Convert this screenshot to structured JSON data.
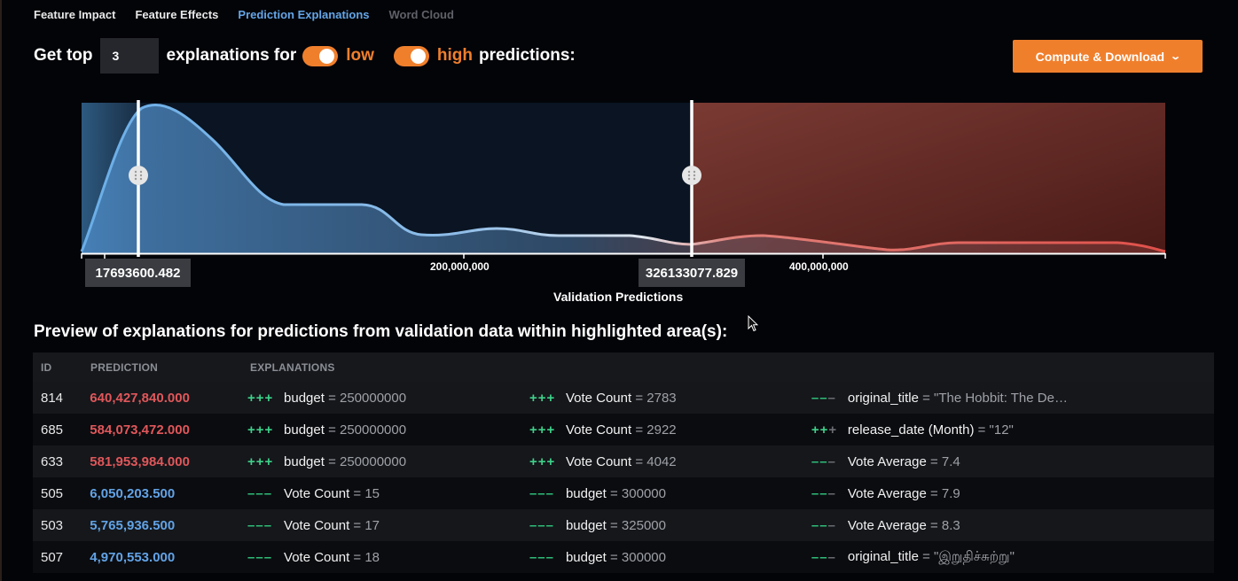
{
  "tabs": [
    {
      "label": "Feature Impact",
      "state": "normal"
    },
    {
      "label": "Feature Effects",
      "state": "normal"
    },
    {
      "label": "Prediction Explanations",
      "state": "active"
    },
    {
      "label": "Word Cloud",
      "state": "disabled"
    }
  ],
  "controls": {
    "get_top_label": "Get top",
    "top_n_value": "3",
    "explanations_for_label": "explanations for",
    "low_label": "low",
    "high_label": "high",
    "predictions_label": "predictions:",
    "low_toggle_on": true,
    "high_toggle_on": true,
    "compute_button_label": "Compute & Download"
  },
  "chart_data": {
    "type": "area",
    "x_axis": {
      "label": "Validation Predictions",
      "ticks": [
        "200,000,000",
        "400,000,000"
      ],
      "range": [
        0,
        600000000
      ]
    },
    "thresholds": {
      "low": 17693600.482,
      "low_label": "17693600.482",
      "high": 326133077.829,
      "high_label": "326133077.829"
    },
    "colors": {
      "low_region": "#3b74a8",
      "high_region": "#a33a32",
      "curve_low": "#6aaee8",
      "curve_high": "#e06860"
    }
  },
  "preview": {
    "title": "Preview of explanations for predictions from validation data within highlighted area(s):",
    "columns": [
      "ID",
      "PREDICTION",
      "EXPLANATIONS"
    ],
    "rows": [
      {
        "id": "814",
        "prediction": "640,427,840.000",
        "tier": "high",
        "explanations": [
          {
            "strength": "+++",
            "sign": "pos",
            "feature": "budget",
            "value": " = 250000000"
          },
          {
            "strength": "+++",
            "sign": "pos",
            "feature": "Vote Count",
            "value": " = 2783"
          },
          {
            "strength": "−−−",
            "sign": "neg2",
            "feature": "original_title",
            "value": " = \"The Hobbit: The De…"
          }
        ]
      },
      {
        "id": "685",
        "prediction": "584,073,472.000",
        "tier": "high",
        "explanations": [
          {
            "strength": "+++",
            "sign": "pos",
            "feature": "budget",
            "value": " = 250000000"
          },
          {
            "strength": "+++",
            "sign": "pos",
            "feature": "Vote Count",
            "value": " = 2922"
          },
          {
            "strength": "++",
            "sign": "pos2",
            "feature": "release_date (Month)",
            "value": " = \"12\""
          }
        ]
      },
      {
        "id": "633",
        "prediction": "581,953,984.000",
        "tier": "high",
        "explanations": [
          {
            "strength": "+++",
            "sign": "pos",
            "feature": "budget",
            "value": " = 250000000"
          },
          {
            "strength": "+++",
            "sign": "pos",
            "feature": "Vote Count",
            "value": " = 4042"
          },
          {
            "strength": "−−−",
            "sign": "neg2",
            "feature": "Vote Average",
            "value": " = 7.4"
          }
        ]
      },
      {
        "id": "505",
        "prediction": "6,050,203.500",
        "tier": "low",
        "explanations": [
          {
            "strength": "−−−",
            "sign": "neg",
            "feature": "Vote Count",
            "value": " = 15"
          },
          {
            "strength": "−−−",
            "sign": "neg",
            "feature": "budget",
            "value": " = 300000"
          },
          {
            "strength": "−−−",
            "sign": "neg2",
            "feature": "Vote Average",
            "value": " = 7.9"
          }
        ]
      },
      {
        "id": "503",
        "prediction": "5,765,936.500",
        "tier": "low",
        "explanations": [
          {
            "strength": "−−−",
            "sign": "neg",
            "feature": "Vote Count",
            "value": " = 17"
          },
          {
            "strength": "−−−",
            "sign": "neg",
            "feature": "budget",
            "value": " = 325000"
          },
          {
            "strength": "−−−",
            "sign": "neg2",
            "feature": "Vote Average",
            "value": " = 8.3"
          }
        ]
      },
      {
        "id": "507",
        "prediction": "4,970,553.000",
        "tier": "low",
        "explanations": [
          {
            "strength": "−−−",
            "sign": "neg",
            "feature": "Vote Count",
            "value": " = 18"
          },
          {
            "strength": "−−−",
            "sign": "neg",
            "feature": "budget",
            "value": " = 300000"
          },
          {
            "strength": "−−−",
            "sign": "neg2",
            "feature": "original_title",
            "value": " = \"இறுதிச்சுற்று\""
          }
        ]
      }
    ]
  }
}
